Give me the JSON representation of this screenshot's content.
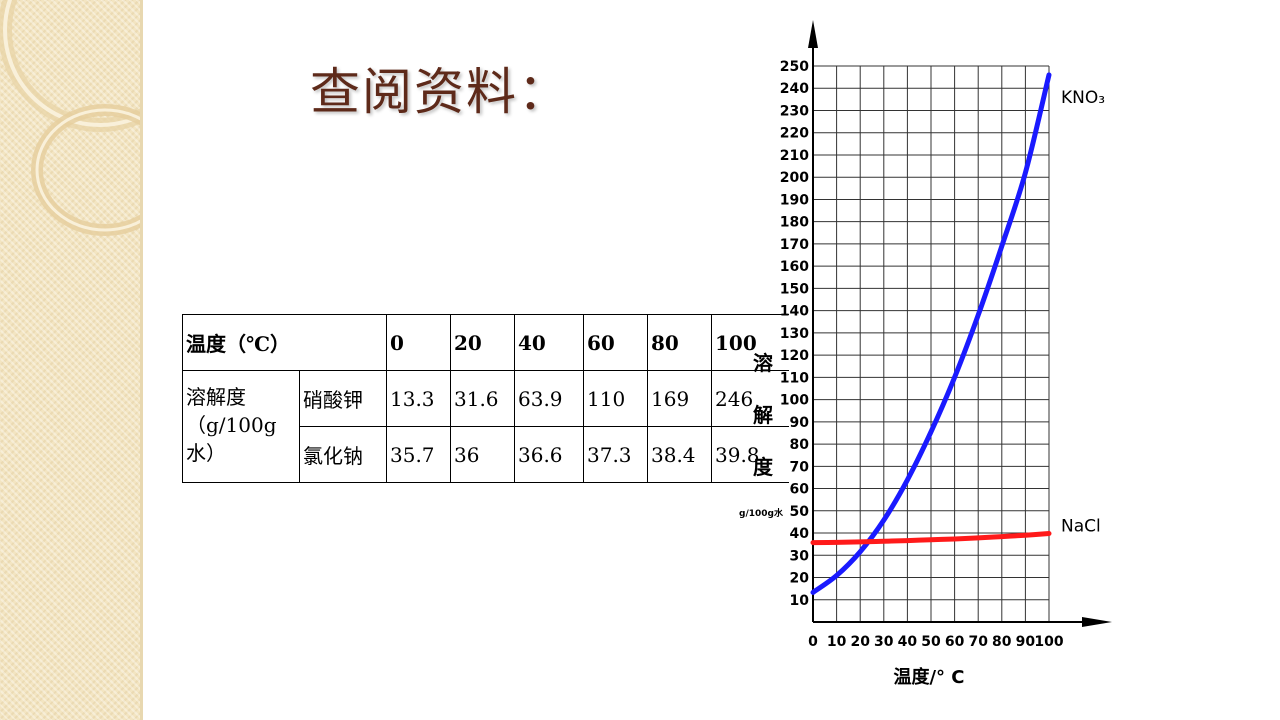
{
  "slide": {
    "title": "查阅资料："
  },
  "table": {
    "header_label": "温度（℃）",
    "temperatures": [
      "0",
      "20",
      "40",
      "60",
      "80",
      "100"
    ],
    "row_group_label": "溶解度（g/100g水）",
    "rows": [
      {
        "substance": "硝酸钾",
        "values": [
          "13.3",
          "31.6",
          "63.9",
          "110",
          "169",
          "246"
        ]
      },
      {
        "substance": "氯化钠",
        "values": [
          "35.7",
          "36",
          "36.6",
          "37.3",
          "38.4",
          "39.8"
        ]
      }
    ]
  },
  "chart_data": {
    "type": "line",
    "xlabel": "温度/° C",
    "ylabel": "溶解度",
    "ylabel_unit": "g/100g水",
    "xlim": [
      0,
      100
    ],
    "ylim": [
      0,
      250
    ],
    "x_ticks": [
      0,
      10,
      20,
      30,
      40,
      50,
      60,
      70,
      80,
      90,
      100
    ],
    "y_ticks": [
      10,
      20,
      30,
      40,
      50,
      60,
      70,
      80,
      90,
      100,
      110,
      120,
      130,
      140,
      150,
      160,
      170,
      180,
      190,
      200,
      210,
      220,
      230,
      240,
      250
    ],
    "grid": true,
    "series": [
      {
        "name": "KNO₃",
        "color": "#1a1aff",
        "x": [
          0,
          10,
          20,
          30,
          40,
          50,
          60,
          70,
          80,
          90,
          100
        ],
        "y": [
          13.3,
          20.9,
          31.6,
          45.8,
          63.9,
          85.5,
          110,
          138,
          169,
          202,
          246
        ]
      },
      {
        "name": "NaCl",
        "color": "#ff1a1a",
        "x": [
          0,
          10,
          20,
          30,
          40,
          50,
          60,
          70,
          80,
          90,
          100
        ],
        "y": [
          35.7,
          35.8,
          36,
          36.3,
          36.6,
          37,
          37.3,
          37.8,
          38.4,
          39,
          39.8
        ]
      }
    ]
  }
}
